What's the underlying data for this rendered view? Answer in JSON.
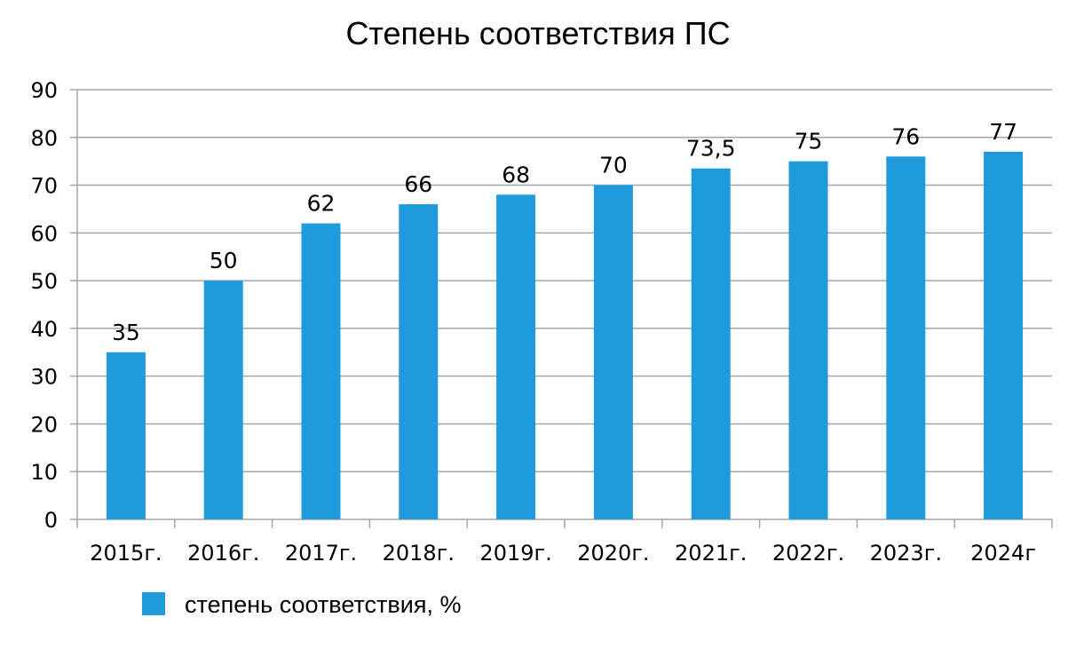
{
  "chart_data": {
    "type": "bar",
    "title": "Степень соответствия ПС",
    "xlabel": "",
    "ylabel": "",
    "categories": [
      "2015г.",
      "2016г.",
      "2017г.",
      "2018г.",
      "2019г.",
      "2020г.",
      "2021г.",
      "2022г.",
      "2023г.",
      "2024г"
    ],
    "series": [
      {
        "name": "степень соответствия, %",
        "values": [
          35,
          50,
          62,
          66,
          68,
          70,
          73.5,
          75,
          76,
          77
        ],
        "labels": [
          "35",
          "50",
          "62",
          "66",
          "68",
          "70",
          "73,5",
          "75",
          "76",
          "77"
        ],
        "color": "#1f9bdb"
      }
    ],
    "ylim": [
      0,
      90
    ],
    "yticks": [
      "0",
      "10",
      "20",
      "30",
      "40",
      "50",
      "60",
      "70",
      "80",
      "90"
    ],
    "grid": true,
    "legend": "bottom-left"
  }
}
